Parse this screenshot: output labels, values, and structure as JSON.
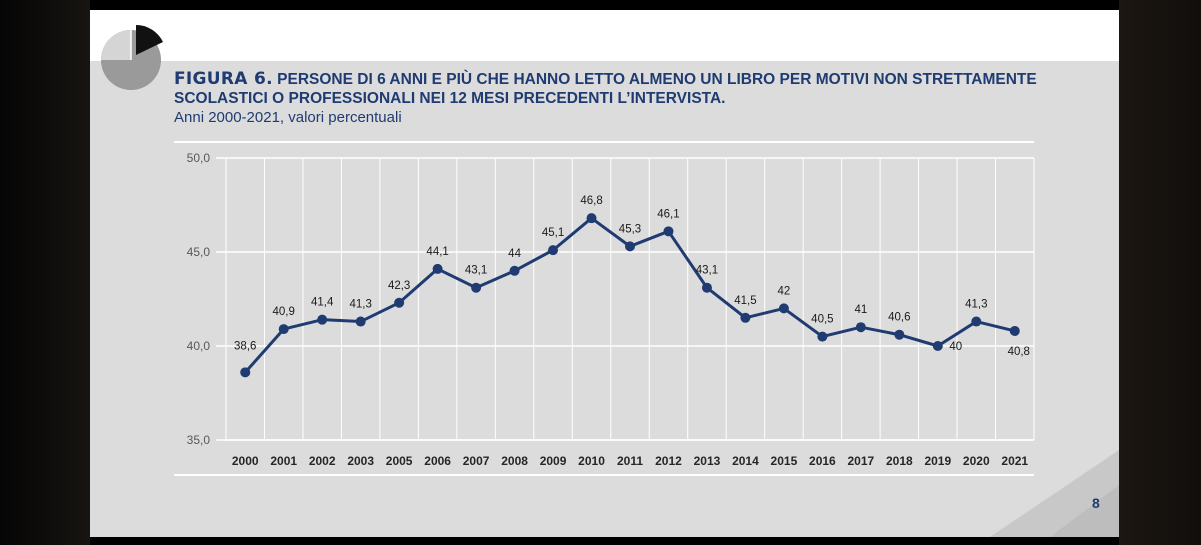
{
  "slide": {
    "figure_label": "FIGURA 6.",
    "title": "PERSONE DI 6 ANNI E PIÙ CHE HANNO LETTO ALMENO UN LIBRO PER MOTIVI NON STRETTAMENTE SCOLASTICI O PROFESSIONALI NEI 12 MESI PRECEDENTI L’INTERVISTA.",
    "subtitle": "Anni 2000-2021, valori percentuali",
    "page_number": "8",
    "colors": {
      "title": "#1f3b71",
      "line": "#1f3b71",
      "background": "#dcdcdc"
    },
    "logo_icon": "pie-chart-icon"
  },
  "chart_data": {
    "type": "line",
    "title": "",
    "xlabel": "",
    "ylabel": "",
    "ylim": [
      35,
      50
    ],
    "y_ticks": [
      "35,0",
      "40,0",
      "45,0",
      "50,0"
    ],
    "grid": true,
    "categories": [
      "2000",
      "2001",
      "2002",
      "2003",
      "2005",
      "2006",
      "2007",
      "2008",
      "2009",
      "2010",
      "2011",
      "2012",
      "2013",
      "2014",
      "2015",
      "2016",
      "2017",
      "2018",
      "2019",
      "2020",
      "2021"
    ],
    "values": [
      38.6,
      40.9,
      41.4,
      41.3,
      42.3,
      44.1,
      43.1,
      44,
      45.1,
      46.8,
      45.3,
      46.1,
      43.1,
      41.5,
      42,
      40.5,
      41,
      40.6,
      40,
      41.3,
      40.8
    ],
    "data_labels": [
      "38,6",
      "40,9",
      "41,4",
      "41,3",
      "42,3",
      "44,1",
      "43,1",
      "44",
      "45,1",
      "46,8",
      "45,3",
      "46,1",
      "43,1",
      "41,5",
      "42",
      "40,5",
      "41",
      "40,6",
      "40",
      "41,3",
      "40,8"
    ],
    "line_color": "#1f3b71"
  }
}
